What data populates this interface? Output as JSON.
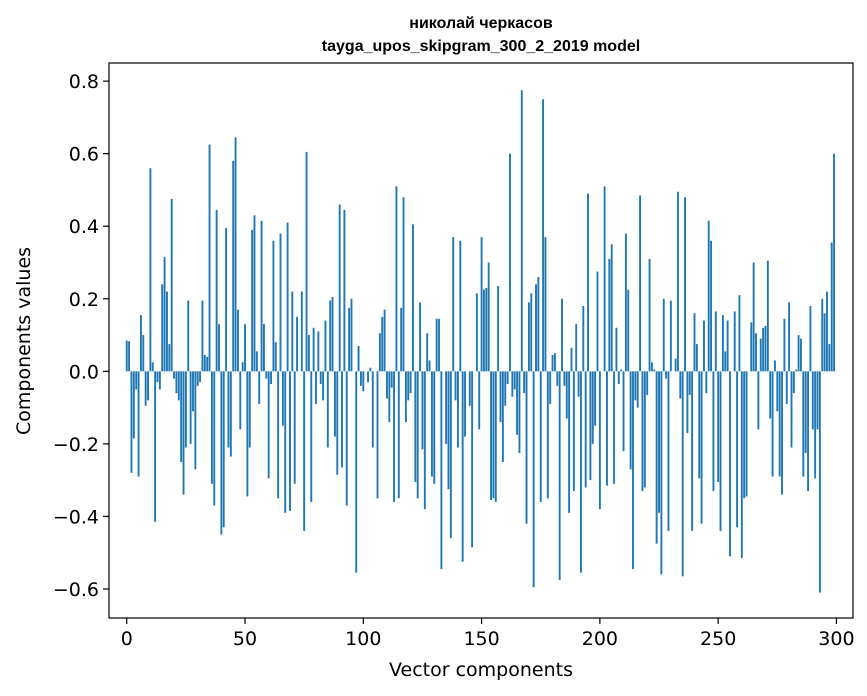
{
  "chart_data": {
    "type": "bar",
    "title": "николай черкасов",
    "subtitle": "tayga_upos_skipgram_300_2_2019 model",
    "xlabel": "Vector components",
    "ylabel": "Components values",
    "xlim": [
      -7.5,
      307
    ],
    "ylim": [
      -0.68,
      0.85
    ],
    "xticks": [
      0,
      50,
      100,
      150,
      200,
      250,
      300
    ],
    "xtick_labels": [
      "0",
      "50",
      "100",
      "150",
      "200",
      "250",
      "300"
    ],
    "yticks": [
      -0.6,
      -0.4,
      -0.2,
      0.0,
      0.2,
      0.4,
      0.6,
      0.8
    ],
    "ytick_labels": [
      "−0.6",
      "−0.4",
      "−0.2",
      "0.0",
      "0.2",
      "0.4",
      "0.6",
      "0.8"
    ],
    "color": "#1f77b4",
    "values": [
      0.085,
      0.083,
      -0.28,
      -0.185,
      -0.05,
      -0.29,
      0.155,
      0.1,
      -0.095,
      -0.08,
      0.56,
      0.025,
      -0.415,
      -0.03,
      -0.05,
      0.24,
      0.315,
      0.22,
      0.075,
      0.475,
      -0.02,
      -0.06,
      -0.08,
      -0.25,
      -0.34,
      -0.21,
      0.195,
      -0.2,
      -0.11,
      -0.27,
      -0.04,
      -0.03,
      0.195,
      0.045,
      0.04,
      0.625,
      -0.31,
      -0.37,
      0.445,
      0.13,
      -0.45,
      -0.43,
      0.395,
      -0.21,
      -0.235,
      0.58,
      0.645,
      0.17,
      -0.16,
      0.025,
      0.13,
      -0.345,
      -0.21,
      0.39,
      0.43,
      0.055,
      -0.09,
      0.415,
      0.13,
      -0.02,
      -0.295,
      -0.035,
      0.36,
      0.08,
      -0.35,
      0.38,
      -0.15,
      -0.39,
      0.41,
      -0.385,
      0.22,
      -0.31,
      0.15,
      0.0,
      0.22,
      -0.44,
      0.605,
      0.1,
      -0.36,
      0.12,
      -0.09,
      0.11,
      -0.035,
      -0.08,
      0.14,
      -0.21,
      0.195,
      0.205,
      -0.18,
      -0.285,
      0.46,
      -0.265,
      0.445,
      -0.37,
      0.175,
      0.2,
      0.0,
      -0.555,
      0.07,
      -0.04,
      -0.055,
      0.0,
      -0.03,
      0.01,
      -0.21,
      0.0,
      -0.35,
      0.105,
      0.15,
      0.17,
      -0.075,
      -0.14,
      -0.045,
      -0.36,
      0.51,
      -0.35,
      0.175,
      0.48,
      -0.14,
      -0.08,
      -0.06,
      0.405,
      -0.305,
      -0.35,
      0.19,
      -0.215,
      -0.38,
      0.105,
      0.03,
      -0.29,
      -0.31,
      0.145,
      0.145,
      -0.545,
      0.0,
      -0.2,
      -0.325,
      -0.46,
      0.37,
      -0.08,
      -0.21,
      0.36,
      -0.525,
      -0.18,
      0.0,
      -0.095,
      -0.485,
      0.0,
      0.215,
      -0.16,
      0.37,
      0.225,
      0.23,
      0.3,
      -0.355,
      -0.35,
      -0.36,
      0.235,
      -0.14,
      -0.25,
      -0.095,
      -0.035,
      0.6,
      -0.07,
      -0.05,
      -0.175,
      -0.225,
      0.775,
      -0.06,
      -0.42,
      0.19,
      0.215,
      -0.595,
      0.24,
      0.26,
      -0.36,
      0.75,
      0.37,
      -0.35,
      -0.09,
      0.045,
      0.05,
      -0.04,
      -0.575,
      0.2,
      -0.04,
      -0.13,
      -0.39,
      0.065,
      -0.33,
      0.13,
      -0.07,
      -0.555,
      0.18,
      -0.32,
      0.49,
      -0.3,
      -0.2,
      -0.15,
      0.275,
      -0.38,
      0.0,
      0.51,
      -0.315,
      0.31,
      0.35,
      -0.31,
      0.12,
      -0.035,
      0.005,
      -0.22,
      0.38,
      0.225,
      -0.27,
      -0.545,
      -0.08,
      -0.1,
      0.485,
      -0.33,
      -0.32,
      -0.065,
      0.31,
      0.025,
      0.005,
      -0.475,
      -0.39,
      -0.56,
      0.2,
      -0.02,
      -0.44,
      0.195,
      0.0,
      0.035,
      0.495,
      -0.075,
      -0.565,
      0.48,
      -0.17,
      -0.065,
      -0.44,
      0.16,
      0.075,
      -0.295,
      -0.42,
      0.14,
      -0.06,
      0.415,
      0.36,
      -0.33,
      0.165,
      -0.305,
      -0.44,
      0.155,
      0.055,
      0.14,
      -0.51,
      0.0,
      0.165,
      -0.43,
      0.21,
      -0.515,
      -0.35,
      -0.345,
      0.0,
      0.135,
      0.3,
      0.105,
      -0.16,
      0.09,
      0.12,
      0.125,
      0.305,
      -0.13,
      -0.29,
      0.03,
      -0.11,
      -0.29,
      -0.34,
      0.145,
      -0.09,
      0.19,
      -0.21,
      -0.06,
      0.005,
      0.1,
      0.09,
      -0.29,
      -0.225,
      -0.33,
      0.18,
      -0.16,
      -0.295,
      -0.16,
      -0.61,
      0.2,
      0.16,
      0.22,
      0.075,
      0.355,
      0.6
    ]
  }
}
